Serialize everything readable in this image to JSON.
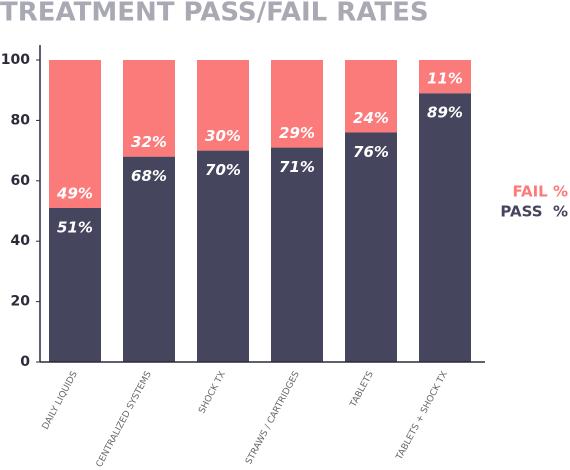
{
  "chart_data": {
    "type": "stacked-bar",
    "title": "TREATMENT PASS/FAIL RATES",
    "categories": [
      "DAILY LIQUIDS",
      "CENTRALIZED SYSTEMS",
      "SHOCK TX",
      "STRAWS / CARTRIDGES",
      "TABLETS",
      "TABLETS + SHOCK TX"
    ],
    "series": [
      {
        "name": "PASS  %",
        "color": "#45455e",
        "values": [
          51,
          68,
          70,
          71,
          76,
          89
        ],
        "value_labels": [
          "51%",
          "68%",
          "70%",
          "71%",
          "76%",
          "89%"
        ]
      },
      {
        "name": "FAIL %",
        "color": "#fb7a7a",
        "values": [
          49,
          32,
          30,
          29,
          24,
          11
        ],
        "value_labels": [
          "49%",
          "32%",
          "30%",
          "29%",
          "24%",
          "11%"
        ]
      }
    ],
    "ylim": [
      0,
      100
    ],
    "yticks": [
      0,
      20,
      40,
      60,
      80,
      100
    ],
    "grid": false
  }
}
